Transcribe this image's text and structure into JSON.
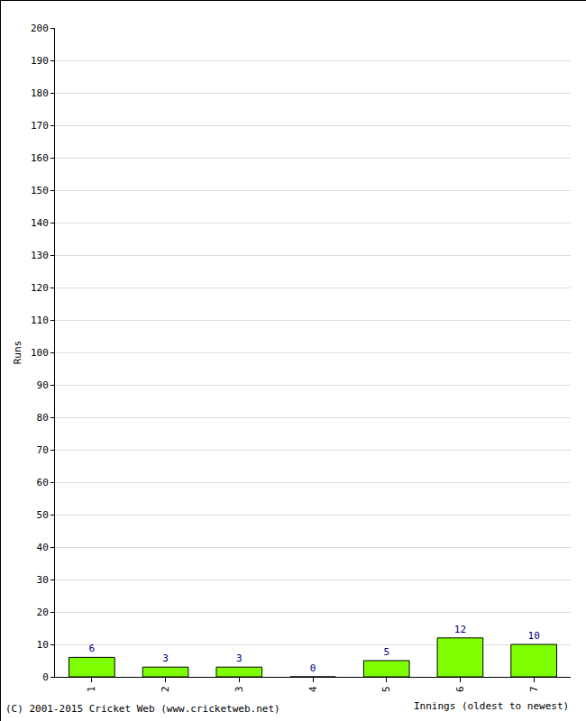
{
  "chart_data": {
    "type": "bar",
    "categories": [
      "1",
      "2",
      "3",
      "4",
      "5",
      "6",
      "7"
    ],
    "values": [
      6,
      3,
      3,
      0,
      5,
      12,
      10
    ],
    "color": "#80ff00",
    "x_label": "Innings (oldest to newest)",
    "y_label": "Runs",
    "ylim": [
      0,
      200
    ],
    "yticks": [
      0,
      10,
      20,
      30,
      40,
      50,
      60,
      70,
      80,
      90,
      100,
      110,
      120,
      130,
      140,
      150,
      160,
      170,
      180,
      190,
      200
    ],
    "grid": true,
    "data_labels": true,
    "annotations": [
      "(C) 2001-2015 Cricket Web (www.cricketweb.net)"
    ]
  }
}
